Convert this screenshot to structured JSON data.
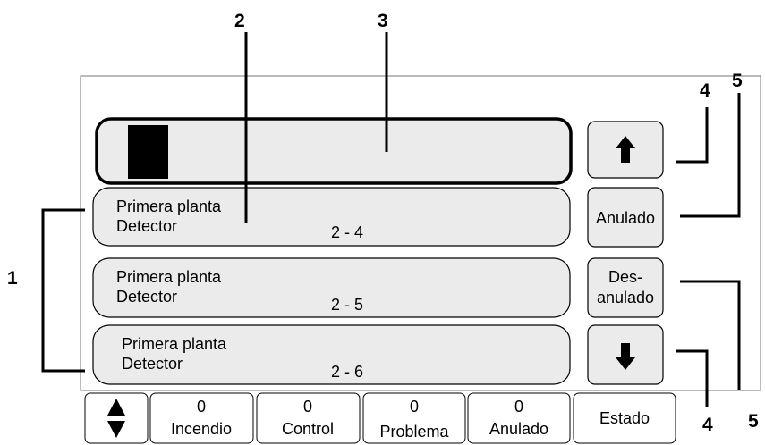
{
  "callouts": [
    "1",
    "2",
    "3",
    "4",
    "5",
    "4",
    "5"
  ],
  "list_items": [
    {
      "line1": "Primera planta",
      "line2": "Detector",
      "address": "2 - 4"
    },
    {
      "line1": "Primera planta",
      "line2": "Detector",
      "address": "2 - 5"
    },
    {
      "line1": "Primera planta",
      "line2": "Detector",
      "address": "2 - 6"
    }
  ],
  "side_buttons": {
    "anulado": "Anulado",
    "desanulado": [
      "Des-",
      "anulado"
    ]
  },
  "status_tabs": [
    {
      "count": "0",
      "label": "Incendio"
    },
    {
      "count": "0",
      "label": "Control"
    },
    {
      "count": "0",
      "label": "Problema"
    },
    {
      "count": "0",
      "label": "Anulado"
    }
  ],
  "estado": "Estado"
}
